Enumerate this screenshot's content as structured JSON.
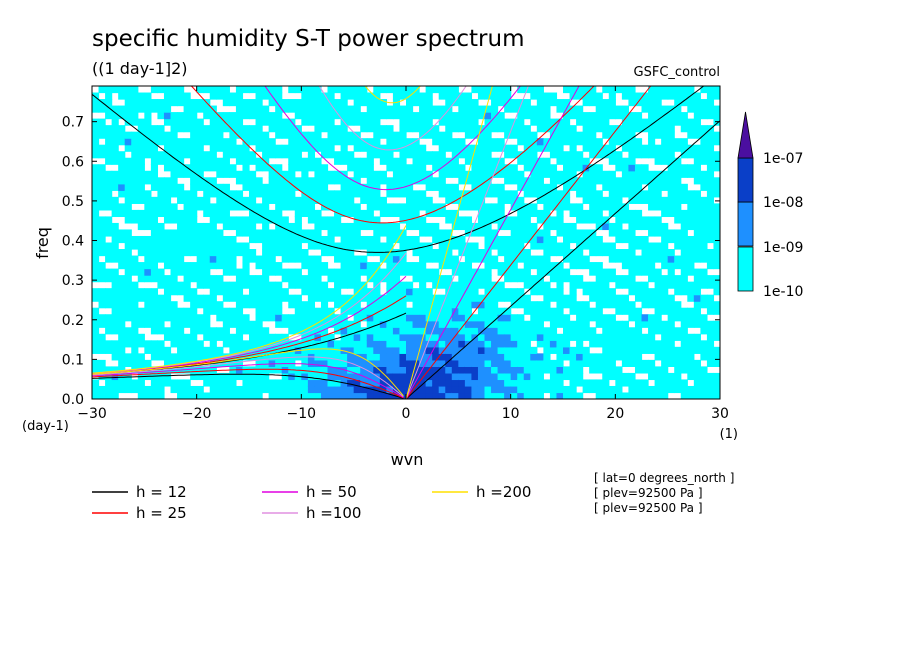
{
  "chart_data": {
    "type": "heatmap",
    "title": "specific humidity S-T power spectrum",
    "subtitle": "((1 day-1]2)",
    "experiment": "GSFC_control",
    "xlabel": "wvn",
    "ylabel": "freq",
    "x_unit": "(1)",
    "y_unit": "(day-1)",
    "xlim": [
      -30,
      30
    ],
    "ylim": [
      0,
      0.79
    ],
    "x_ticks": [
      -30,
      -20,
      -10,
      0,
      10,
      20,
      30
    ],
    "x_tick_labels": [
      "−30",
      "−20",
      "−10",
      "0",
      "10",
      "20",
      "30"
    ],
    "y_ticks": [
      0.0,
      0.1,
      0.2,
      0.3,
      0.4,
      0.5,
      0.6,
      0.7
    ],
    "y_tick_labels": [
      "0.0",
      "0.1",
      "0.2",
      "0.3",
      "0.4",
      "0.5",
      "0.6",
      "0.7"
    ],
    "colorbar": {
      "levels": [
        "1e-10",
        "1e-09",
        "1e-08",
        "1e-07"
      ],
      "colors": [
        "#00ffff",
        "#1e90ff",
        "#0a3fc8",
        "#4b0fa0"
      ]
    },
    "dispersion_curves": [
      {
        "label": "h = 12",
        "h": 12,
        "color": "#000000"
      },
      {
        "label": "h = 25",
        "h": 25,
        "color": "#ff0000"
      },
      {
        "label": "h = 50",
        "h": 50,
        "color": "#e000e0"
      },
      {
        "label": "h =100",
        "h": 100,
        "color": "#e090e0"
      },
      {
        "label": "h =200",
        "h": 200,
        "color": "#ffe000"
      }
    ],
    "annotations": [
      "[ lat=0 degrees_north ]",
      "[ plev=92500 Pa ]",
      "[ plev=92500 Pa ]"
    ]
  }
}
